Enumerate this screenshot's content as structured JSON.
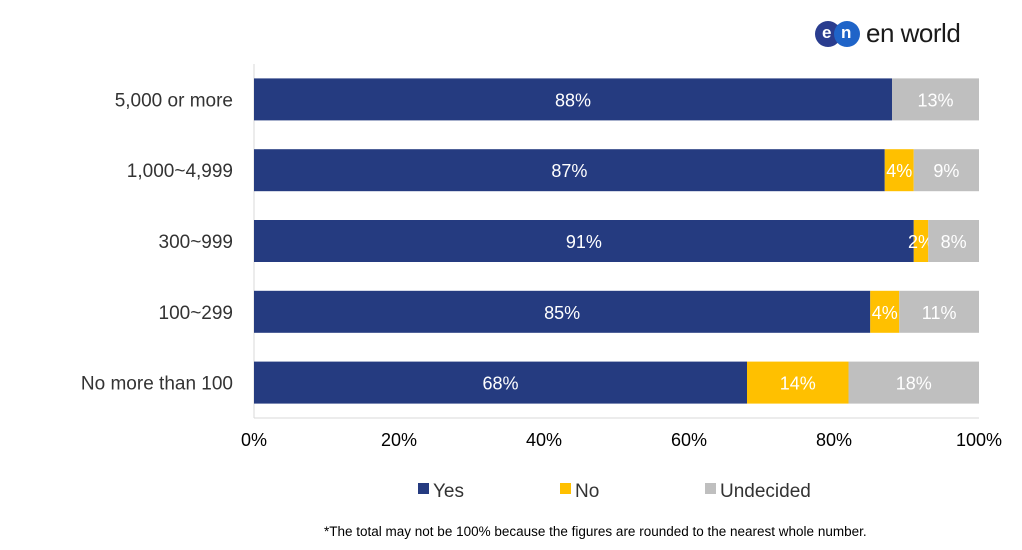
{
  "logo": {
    "mark_left": "e",
    "mark_right": "n",
    "text": "en world"
  },
  "chart_data": {
    "type": "bar",
    "orientation": "horizontal",
    "stacked": true,
    "categories": [
      "5,000 or more",
      "1,000~4,999",
      "300~999",
      "100~299",
      "No more than 100"
    ],
    "series": [
      {
        "name": "Yes",
        "color": "#253B80",
        "label_color": "#ffffff",
        "values": [
          88,
          87,
          91,
          85,
          68
        ],
        "labels": [
          "88%",
          "87%",
          "91%",
          "85%",
          "68%"
        ]
      },
      {
        "name": "No",
        "color": "#FFC000",
        "label_color": "#ffffff",
        "values": [
          0,
          4,
          2,
          4,
          14
        ],
        "labels": [
          "",
          "4%",
          "2%",
          "4%",
          "14%"
        ]
      },
      {
        "name": "Undecided",
        "color": "#BFBFBF",
        "label_color": "#ffffff",
        "values": [
          13,
          9,
          8,
          11,
          18
        ],
        "labels": [
          "13%",
          "9%",
          "8%",
          "11%",
          "18%"
        ]
      }
    ],
    "x_ticks": [
      "0%",
      "20%",
      "40%",
      "60%",
      "80%",
      "100%"
    ],
    "xlim": [
      0,
      100
    ],
    "legend_position": "bottom",
    "grid": false
  },
  "footnote": "*The total may not be 100% because the figures are rounded to the nearest whole number."
}
